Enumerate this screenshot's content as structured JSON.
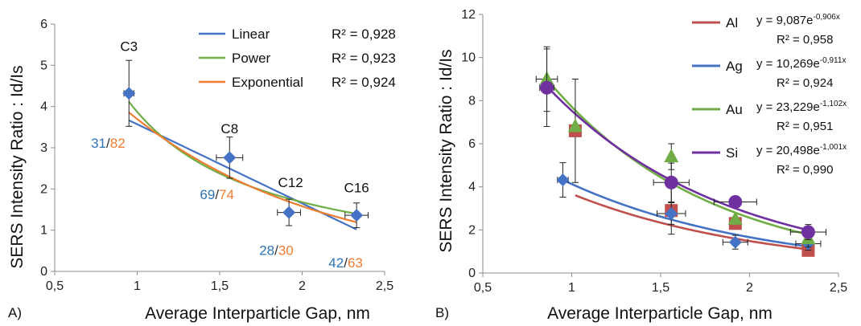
{
  "chart_data": [
    {
      "type": "scatter",
      "panel_label": "A)",
      "xlabel": "Average Interparticle Gap, nm",
      "ylabel": "SERS Intensity  Ratio : Id/Is",
      "xlim": [
        0.5,
        2.5
      ],
      "ylim": [
        0,
        6
      ],
      "xticks": [
        "0,5",
        "1",
        "1,5",
        "2",
        "2,5"
      ],
      "yticks": [
        "0",
        "1",
        "2",
        "3",
        "4",
        "5",
        "6"
      ],
      "grid": false,
      "legend_position": "top-right",
      "points": {
        "name": "",
        "color": "#4472c4",
        "marker": "diamond",
        "data": [
          {
            "x": 0.95,
            "y": 4.32,
            "xerr": 0.03,
            "yerr": 0.8,
            "label": "C3",
            "lx": 0.95,
            "ly": 5.35,
            "ratio_a": "31",
            "ratio_b": "82",
            "rx": 0.72,
            "ry": 3.0
          },
          {
            "x": 1.56,
            "y": 2.76,
            "xerr": 0.08,
            "yerr": 0.5,
            "label": "C8",
            "lx": 1.56,
            "ly": 3.35,
            "ratio_a": "69",
            "ratio_b": "74",
            "rx": 1.38,
            "ry": 1.75
          },
          {
            "x": 1.92,
            "y": 1.43,
            "xerr": 0.07,
            "yerr": 0.32,
            "label": "C12",
            "lx": 1.93,
            "ly": 2.05,
            "ratio_a": "28",
            "ratio_b": "30",
            "rx": 1.74,
            "ry": 0.4
          },
          {
            "x": 2.33,
            "y": 1.36,
            "xerr": 0.07,
            "yerr": 0.3,
            "label": "C16",
            "lx": 2.33,
            "ly": 1.92,
            "ratio_a": "42",
            "ratio_b": "63",
            "rx": 2.16,
            "ry": 0.1
          }
        ]
      },
      "ratio_colors": {
        "a": "#2e75b6",
        "b": "#ed7d31",
        "slash": "#333333"
      },
      "fits": [
        {
          "name": "Linear",
          "r2": "R² = 0,928",
          "color": "#4472c4",
          "kind": "linear",
          "a": 5.49,
          "b": -1.92,
          "xrange": [
            0.95,
            2.33
          ]
        },
        {
          "name": "Power",
          "r2": "R² = 0,923",
          "color": "#70ad47",
          "kind": "power",
          "a": 3.87,
          "b": -1.204,
          "xrange": [
            0.95,
            2.33
          ]
        },
        {
          "name": "Exponential",
          "r2": "R² = 0,924",
          "color": "#ed7d31",
          "kind": "exp",
          "a": 8.65,
          "b": -0.85,
          "xrange": [
            0.95,
            2.33
          ]
        }
      ]
    },
    {
      "type": "scatter",
      "panel_label": "B)",
      "xlabel": "Average Interparticle Gap, nm",
      "ylabel": "SERS Intensity  Ratio : Id/Is",
      "xlim": [
        0.5,
        2.5
      ],
      "ylim": [
        0,
        12
      ],
      "xticks": [
        "0,5",
        "1",
        "1,5",
        "2",
        "2,5"
      ],
      "yticks": [
        "0",
        "2",
        "4",
        "6",
        "8",
        "10",
        "12"
      ],
      "grid": false,
      "legend_position": "top-right",
      "series": [
        {
          "name": "Al",
          "color": "#c0504d",
          "marker": "square",
          "equation": {
            "base": "y = 9,087e",
            "exp": "-0,906x"
          },
          "r2": "R² = 0,958",
          "fit": {
            "a": 9.087,
            "b": -0.906,
            "xrange": [
              1.02,
              2.33
            ]
          },
          "data": [
            {
              "x": 1.02,
              "y": 6.6,
              "xerr": 0,
              "yerr": 2.4
            },
            {
              "x": 1.56,
              "y": 2.9,
              "xerr": 0,
              "yerr": 1.1
            },
            {
              "x": 1.92,
              "y": 2.3,
              "xerr": 0,
              "yerr": 0
            },
            {
              "x": 2.33,
              "y": 1.05,
              "xerr": 0,
              "yerr": 0
            }
          ]
        },
        {
          "name": "Ag",
          "color": "#4472c4",
          "marker": "diamond",
          "equation": {
            "base": "y = 10,269e",
            "exp": "-0,911x"
          },
          "r2": "R² = 0,924",
          "fit": {
            "a": 10.269,
            "b": -0.911,
            "xrange": [
              0.95,
              2.33
            ]
          },
          "data": [
            {
              "x": 0.95,
              "y": 4.32,
              "xerr": 0.03,
              "yerr": 0.8
            },
            {
              "x": 1.56,
              "y": 2.76,
              "xerr": 0.08,
              "yerr": 0.5
            },
            {
              "x": 1.92,
              "y": 1.43,
              "xerr": 0.07,
              "yerr": 0.32
            },
            {
              "x": 2.33,
              "y": 1.36,
              "xerr": 0.07,
              "yerr": 0.3
            }
          ]
        },
        {
          "name": "Au",
          "color": "#70ad47",
          "marker": "triangle",
          "equation": {
            "base": "y = 23,229e",
            "exp": "-1,102x"
          },
          "r2": "R² = 0,951",
          "fit": {
            "a": 23.229,
            "b": -1.102,
            "xrange": [
              0.86,
              2.33
            ]
          },
          "data": [
            {
              "x": 0.86,
              "y": 9.0,
              "xerr": 0.06,
              "yerr": 1.5
            },
            {
              "x": 1.02,
              "y": 6.8,
              "xerr": 0,
              "yerr": 0
            },
            {
              "x": 1.56,
              "y": 5.4,
              "xerr": 0,
              "yerr": 0.6
            },
            {
              "x": 1.92,
              "y": 2.5,
              "xerr": 0,
              "yerr": 0
            },
            {
              "x": 2.33,
              "y": 1.6,
              "xerr": 0,
              "yerr": 0.4
            }
          ]
        },
        {
          "name": "Si",
          "color": "#7030a0",
          "marker": "circle",
          "equation": {
            "base": "y = 20,498e",
            "exp": "-1,001x"
          },
          "r2": "R² = 0,990",
          "fit": {
            "a": 20.498,
            "b": -1.001,
            "xrange": [
              0.86,
              2.33
            ]
          },
          "data": [
            {
              "x": 0.86,
              "y": 8.6,
              "xerr": 0.04,
              "yerr": 1.8
            },
            {
              "x": 1.56,
              "y": 4.2,
              "xerr": 0.1,
              "yerr": 0.9
            },
            {
              "x": 1.92,
              "y": 3.3,
              "xerr": 0.12,
              "yerr": 0
            },
            {
              "x": 2.33,
              "y": 1.9,
              "xerr": 0.1,
              "yerr": 0.35
            }
          ]
        }
      ]
    }
  ]
}
